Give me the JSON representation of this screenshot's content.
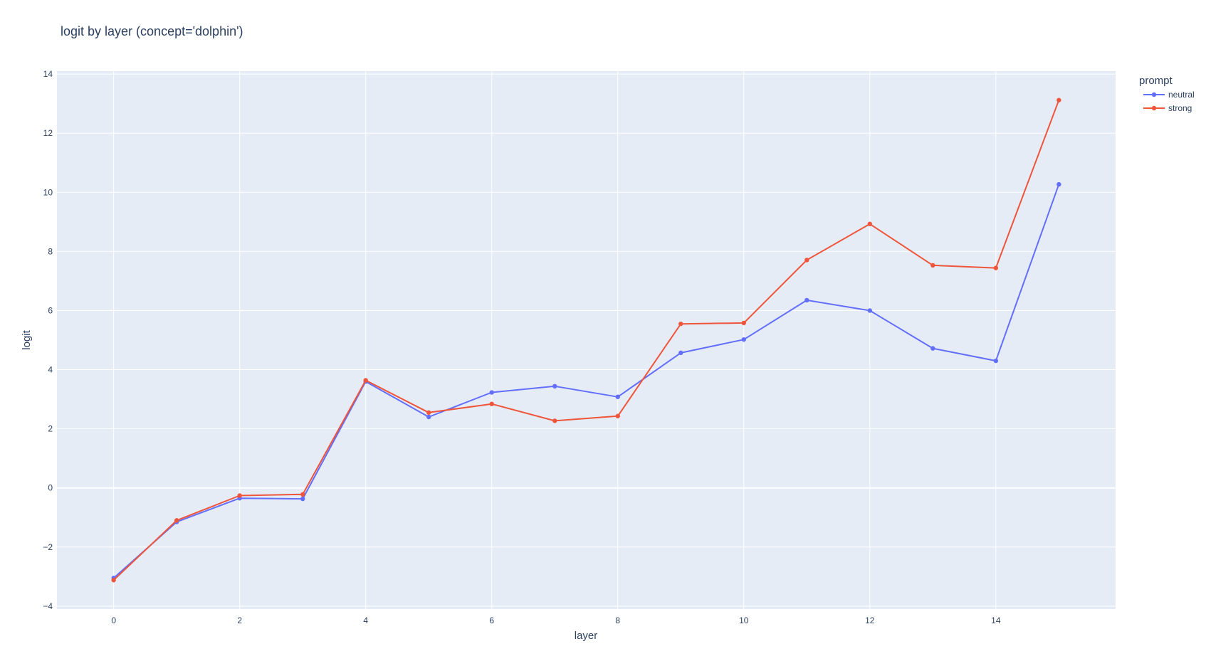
{
  "chart_data": {
    "type": "line",
    "title": "logit by layer (concept='dolphin')",
    "xlabel": "layer",
    "ylabel": "logit",
    "xlim": [
      -0.9,
      15.9
    ],
    "ylim": [
      -4.1,
      14.1
    ],
    "xticks": [
      0,
      2,
      4,
      6,
      8,
      10,
      12,
      14
    ],
    "yticks": [
      -4,
      -2,
      0,
      2,
      4,
      6,
      8,
      10,
      12,
      14
    ],
    "xtick_labels": [
      "0",
      "2",
      "4",
      "6",
      "8",
      "10",
      "12",
      "14"
    ],
    "ytick_labels": [
      "−4",
      "−2",
      "0",
      "2",
      "4",
      "6",
      "8",
      "10",
      "12",
      "14"
    ],
    "grid": true,
    "legend_position": "top-right",
    "legend_title": "prompt",
    "x": [
      0,
      1,
      2,
      3,
      4,
      5,
      6,
      7,
      8,
      9,
      10,
      11,
      12,
      13,
      14,
      15
    ],
    "series": [
      {
        "name": "neutral",
        "color": "#636efa",
        "values": [
          -3.05,
          -1.15,
          -0.35,
          -0.37,
          3.6,
          2.4,
          3.23,
          3.44,
          3.08,
          4.57,
          5.02,
          6.35,
          6.0,
          4.72,
          4.3,
          10.27
        ]
      },
      {
        "name": "strong",
        "color": "#ef553b",
        "values": [
          -3.12,
          -1.1,
          -0.26,
          -0.22,
          3.64,
          2.55,
          2.84,
          2.27,
          2.43,
          5.55,
          5.58,
          7.71,
          8.93,
          7.53,
          7.44,
          13.12
        ]
      }
    ]
  },
  "colors": {
    "plot_background": "#e5ecf6",
    "grid": "#ffffff",
    "text": "#2a3f5f"
  }
}
